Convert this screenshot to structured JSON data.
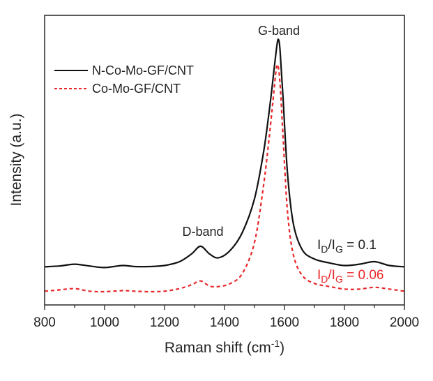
{
  "chart_data": {
    "type": "line",
    "title": "",
    "xlabel": "Raman shift (cm",
    "xlabel_sup": "-1",
    "xlabel_end": ")",
    "ylabel": "Intensity (a.u.)",
    "xlim": [
      800,
      2000
    ],
    "ylim": [
      0,
      1
    ],
    "xticks": [
      800,
      1000,
      1200,
      1400,
      1600,
      1800,
      2000
    ],
    "xtick_labels": [
      "800",
      "1000",
      "1200",
      "1400",
      "1600",
      "1800",
      "2000"
    ],
    "grid": false,
    "legend_position": "top-left",
    "series": [
      {
        "name": "N-Co-Mo-GF/CNT",
        "color": "#111111",
        "style": "solid",
        "x": [
          800,
          850,
          900,
          950,
          1000,
          1060,
          1100,
          1150,
          1200,
          1250,
          1290,
          1320,
          1350,
          1380,
          1420,
          1460,
          1500,
          1530,
          1550,
          1565,
          1575,
          1580,
          1585,
          1595,
          1610,
          1630,
          1660,
          1700,
          1750,
          1800,
          1850,
          1900,
          1950,
          2000
        ],
        "y": [
          0.135,
          0.138,
          0.145,
          0.138,
          0.132,
          0.14,
          0.136,
          0.136,
          0.14,
          0.155,
          0.185,
          0.215,
          0.185,
          0.17,
          0.2,
          0.27,
          0.4,
          0.58,
          0.75,
          0.9,
          1.0,
          1.02,
          0.98,
          0.8,
          0.5,
          0.3,
          0.2,
          0.165,
          0.15,
          0.14,
          0.145,
          0.155,
          0.14,
          0.135
        ]
      },
      {
        "name": "Co-Mo-GF/CNT",
        "color": "#e8262a",
        "style": "dashed",
        "x": [
          800,
          850,
          900,
          950,
          1000,
          1060,
          1100,
          1150,
          1200,
          1250,
          1290,
          1320,
          1350,
          1380,
          1420,
          1460,
          1500,
          1530,
          1550,
          1565,
          1572,
          1578,
          1585,
          1595,
          1610,
          1630,
          1660,
          1700,
          1750,
          1800,
          1850,
          1900,
          1950,
          2000
        ],
        "y": [
          0.04,
          0.045,
          0.05,
          0.04,
          0.038,
          0.042,
          0.04,
          0.038,
          0.04,
          0.05,
          0.065,
          0.08,
          0.06,
          0.058,
          0.07,
          0.11,
          0.23,
          0.45,
          0.65,
          0.82,
          0.9,
          0.92,
          0.85,
          0.65,
          0.35,
          0.18,
          0.1,
          0.07,
          0.058,
          0.048,
          0.048,
          0.055,
          0.048,
          0.04
        ]
      }
    ],
    "annotations": [
      {
        "text": "G-band",
        "x": 1580
      },
      {
        "text": "D-band",
        "x": 1320
      },
      {
        "text": "I",
        "sub": "D",
        "slash": "/I",
        "sub2": "G",
        "value": " = 0.1",
        "color": "#222222"
      },
      {
        "text": "I",
        "sub": "D",
        "slash": "/I",
        "sub2": "G",
        "value": " = 0.06",
        "color": "#e8262a"
      }
    ]
  }
}
